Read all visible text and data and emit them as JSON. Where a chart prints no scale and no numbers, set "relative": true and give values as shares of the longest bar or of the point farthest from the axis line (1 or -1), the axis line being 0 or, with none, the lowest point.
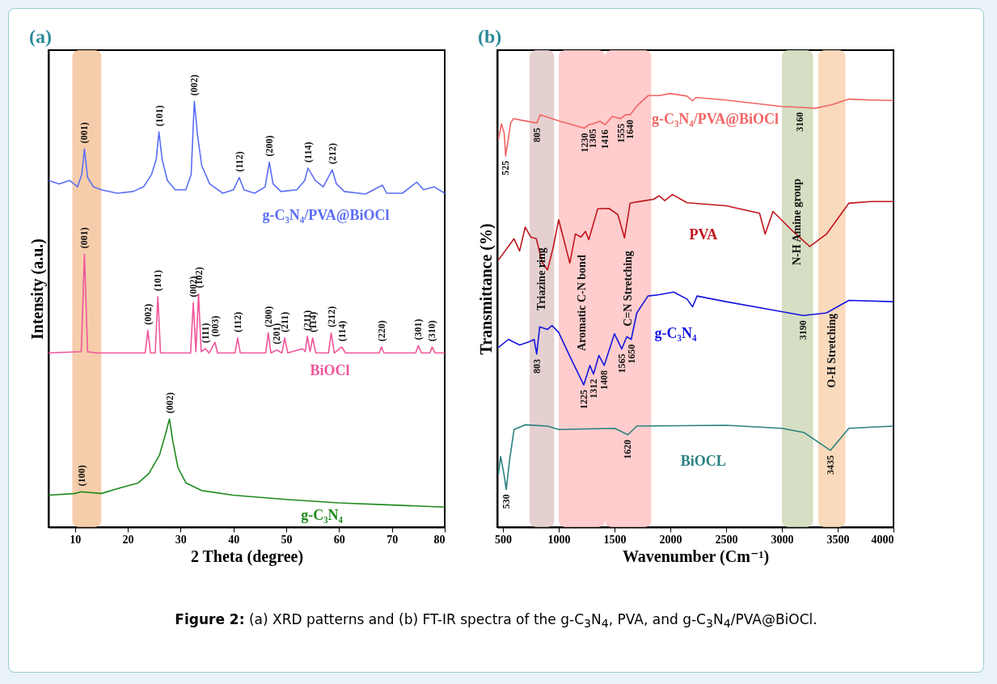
{
  "chart_data": [
    {
      "type": "line",
      "title": "(a)",
      "xlabel": "2 Theta (degree)",
      "ylabel": "Intensity (a.u.)",
      "relative": true,
      "xlim": [
        5,
        80
      ],
      "xticks": [
        10,
        20,
        30,
        40,
        50,
        60,
        70,
        80
      ],
      "series": [
        {
          "name": "g-C₃N₄/PVA@BiOCl",
          "color": "#5b6ef5",
          "x": [
            5,
            7,
            9,
            10.5,
            11.3,
            11.8,
            12.4,
            13.5,
            15,
            18,
            21,
            23,
            24.5,
            25.4,
            25.9,
            26.5,
            27.5,
            29,
            31,
            32,
            32.6,
            33.2,
            34,
            35.5,
            38,
            40,
            41.1,
            42,
            44,
            46,
            46.8,
            47.5,
            49,
            52,
            53.5,
            54.1,
            55.5,
            57,
            58.7,
            59.5,
            61,
            65,
            68.2,
            69,
            72,
            74.7,
            76,
            78,
            80
          ],
          "values": [
            0.814,
            0.806,
            0.814,
            0.799,
            0.828,
            0.888,
            0.821,
            0.799,
            0.792,
            0.784,
            0.788,
            0.799,
            0.828,
            0.864,
            0.928,
            0.864,
            0.814,
            0.792,
            0.792,
            0.828,
            1.0,
            0.921,
            0.849,
            0.806,
            0.784,
            0.792,
            0.821,
            0.792,
            0.784,
            0.799,
            0.857,
            0.806,
            0.788,
            0.792,
            0.814,
            0.843,
            0.814,
            0.799,
            0.839,
            0.806,
            0.788,
            0.782,
            0.803,
            0.784,
            0.784,
            0.81,
            0.792,
            0.799,
            0.784
          ]
        },
        {
          "name": "BiOCl",
          "color": "#f0559a",
          "x": [
            5,
            11.2,
            11.8,
            12.4,
            14,
            23.3,
            23.8,
            24.3,
            25.2,
            25.7,
            26.2,
            31.9,
            32.4,
            32.9,
            33.4,
            33.9,
            34.7,
            35.4,
            36.5,
            37,
            40.3,
            40.8,
            41.3,
            46.1,
            46.6,
            47.1,
            48.2,
            49.2,
            49.7,
            50.3,
            53.1,
            53.6,
            54.0,
            54.5,
            55.0,
            55.6,
            58,
            58.5,
            59.1,
            60.5,
            61.2,
            67.6,
            68.0,
            68.5,
            74.5,
            75.0,
            75.6,
            77.2,
            77.6,
            78.2,
            80
          ],
          "values": [
            0.409,
            0.412,
            0.641,
            0.412,
            0.409,
            0.409,
            0.462,
            0.409,
            0.409,
            0.541,
            0.409,
            0.409,
            0.527,
            0.412,
            0.548,
            0.412,
            0.419,
            0.409,
            0.434,
            0.409,
            0.409,
            0.444,
            0.409,
            0.409,
            0.456,
            0.409,
            0.416,
            0.409,
            0.444,
            0.409,
            0.419,
            0.412,
            0.448,
            0.412,
            0.444,
            0.409,
            0.409,
            0.456,
            0.409,
            0.423,
            0.409,
            0.409,
            0.423,
            0.409,
            0.409,
            0.426,
            0.409,
            0.409,
            0.423,
            0.409,
            0.409
          ]
        },
        {
          "name": "g-C₃N₄",
          "color": "#1e8a1e",
          "x": [
            5,
            10,
            11.2,
            15,
            18,
            22,
            24,
            26,
            27,
            27.9,
            28.5,
            29.5,
            31,
            34,
            40,
            50,
            60,
            70,
            80
          ],
          "values": [
            0.075,
            0.079,
            0.083,
            0.079,
            0.09,
            0.104,
            0.126,
            0.169,
            0.212,
            0.254,
            0.204,
            0.14,
            0.104,
            0.086,
            0.075,
            0.065,
            0.057,
            0.052,
            0.047
          ]
        }
      ],
      "bands": [
        {
          "axis": "x",
          "from": 9.5,
          "to": 15,
          "color": "#f5c49c"
        }
      ],
      "annotations": [
        {
          "text": "(001)",
          "x": 11.8,
          "y": 0.888
        },
        {
          "text": "(101)",
          "x": 25.9,
          "y": 0.928
        },
        {
          "text": "(002)",
          "x": 32.6,
          "y": 1.0
        },
        {
          "text": "(112)",
          "x": 41.1,
          "y": 0.821
        },
        {
          "text": "(200)",
          "x": 46.8,
          "y": 0.857
        },
        {
          "text": "(114)",
          "x": 54.1,
          "y": 0.843
        },
        {
          "text": "(212)",
          "x": 58.7,
          "y": 0.839
        },
        {
          "text": "(001)",
          "x": 11.8,
          "y": 0.641
        },
        {
          "text": "(002)",
          "x": 23.8,
          "y": 0.462
        },
        {
          "text": "(101)",
          "x": 25.7,
          "y": 0.541
        },
        {
          "text": "(002)",
          "x": 32.4,
          "y": 0.527
        },
        {
          "text": "(102)",
          "x": 33.4,
          "y": 0.548
        },
        {
          "text": "(111)",
          "x": 34.7,
          "y": 0.419
        },
        {
          "text": "(003)",
          "x": 36.5,
          "y": 0.434
        },
        {
          "text": "(112)",
          "x": 40.8,
          "y": 0.444
        },
        {
          "text": "(200)",
          "x": 46.6,
          "y": 0.456
        },
        {
          "text": "(201)",
          "x": 48.2,
          "y": 0.416
        },
        {
          "text": "(211)",
          "x": 49.7,
          "y": 0.444
        },
        {
          "text": "(211)",
          "x": 54.0,
          "y": 0.448
        },
        {
          "text": "(114)",
          "x": 55.0,
          "y": 0.444
        },
        {
          "text": "(212)",
          "x": 58.5,
          "y": 0.456
        },
        {
          "text": "(114)",
          "x": 60.5,
          "y": 0.423
        },
        {
          "text": "(220)",
          "x": 68.0,
          "y": 0.423
        },
        {
          "text": "(301)",
          "x": 75.0,
          "y": 0.426
        },
        {
          "text": "(310)",
          "x": 77.6,
          "y": 0.423
        },
        {
          "text": "(100)",
          "x": 11.2,
          "y": 0.083
        },
        {
          "text": "(002)",
          "x": 27.9,
          "y": 0.254
        },
        "Figure 2: (a) XRD patterns and (b) FT-IR spectra of the g-C$_{3}$N$_{4}$, PVA, and g-C$_{3}$N$_{4}$/PVA@BiOCl."
      ]
    },
    {
      "type": "line",
      "title": "(b)",
      "xlabel": "Wavenumber (Cm⁻¹)",
      "ylabel": "Transmittance (%)",
      "relative": true,
      "xlim": [
        450,
        4000
      ],
      "xticks": [
        500,
        1000,
        1500,
        2000,
        2500,
        3000,
        3500,
        4000
      ],
      "series": [
        {
          "name": "g-C₃N₄/PVA@BiOCl",
          "color": "#f26464",
          "x": [
            460,
            488,
            512,
            525,
            570,
            595,
            655,
            805,
            835,
            1012,
            1230,
            1270,
            1305,
            1370,
            1416,
            1480,
            1555,
            1600,
            1640,
            1700,
            1800,
            1900,
            2000,
            2150,
            2200,
            2230,
            2500,
            3000,
            3160,
            3300,
            3450,
            3600,
            3800,
            4000
          ],
          "values": [
            0.894,
            0.93,
            0.908,
            0.856,
            0.932,
            0.942,
            0.939,
            0.932,
            0.951,
            0.936,
            0.92,
            0.928,
            0.93,
            0.936,
            0.928,
            0.947,
            0.942,
            0.951,
            0.951,
            0.971,
            0.995,
            0.995,
            1.0,
            0.994,
            0.983,
            0.991,
            0.985,
            0.97,
            0.968,
            0.966,
            0.974,
            0.987,
            0.985,
            0.984
          ]
        },
        {
          "name": "PVA",
          "color": "#c0141c",
          "x": [
            460,
            600,
            650,
            700,
            750,
            800,
            850,
            900,
            950,
            1000,
            1100,
            1150,
            1200,
            1240,
            1270,
            1350,
            1450,
            1530,
            1590,
            1640,
            1750,
            1850,
            1900,
            1950,
            2020,
            2150,
            2500,
            2800,
            2850,
            2920,
            3100,
            3250,
            3400,
            3600,
            3800,
            4000
          ],
          "values": [
            0.616,
            0.665,
            0.637,
            0.692,
            0.669,
            0.665,
            0.612,
            0.593,
            0.644,
            0.709,
            0.609,
            0.676,
            0.669,
            0.682,
            0.663,
            0.734,
            0.735,
            0.721,
            0.667,
            0.747,
            0.752,
            0.756,
            0.764,
            0.753,
            0.767,
            0.748,
            0.741,
            0.724,
            0.676,
            0.728,
            0.682,
            0.647,
            0.676,
            0.747,
            0.751,
            0.751
          ]
        },
        {
          "name": "g-C₃N₄",
          "color": "#1515e0",
          "x": [
            460,
            550,
            650,
            740,
            780,
            803,
            830,
            900,
            940,
            1000,
            1100,
            1225,
            1280,
            1312,
            1360,
            1408,
            1500,
            1565,
            1610,
            1650,
            1700,
            1800,
            1900,
            2030,
            2150,
            2200,
            2240,
            2500,
            3000,
            3190,
            3400,
            3600,
            4000
          ],
          "values": [
            0.414,
            0.433,
            0.42,
            0.428,
            0.433,
            0.399,
            0.462,
            0.456,
            0.465,
            0.449,
            0.394,
            0.328,
            0.373,
            0.353,
            0.396,
            0.373,
            0.446,
            0.411,
            0.439,
            0.433,
            0.494,
            0.533,
            0.536,
            0.542,
            0.526,
            0.508,
            0.533,
            0.52,
            0.497,
            0.488,
            0.494,
            0.523,
            0.52
          ]
        },
        {
          "name": "BiOCL",
          "color": "#2a8080",
          "x": [
            460,
            480,
            510,
            530,
            560,
            600,
            700,
            900,
            1000,
            1500,
            1620,
            1700,
            2500,
            3000,
            3200,
            3435,
            3600,
            4000
          ],
          "values": [
            0.122,
            0.163,
            0.122,
            0.087,
            0.154,
            0.225,
            0.236,
            0.233,
            0.225,
            0.228,
            0.213,
            0.233,
            0.235,
            0.228,
            0.218,
            0.177,
            0.228,
            0.233
          ]
        }
      ],
      "bands": [
        {
          "axis": "x",
          "from": 740,
          "to": 960,
          "color": "#e0c8c8",
          "label": "Triazine ring"
        },
        {
          "axis": "x",
          "from": 1000,
          "to": 1415,
          "color": "#ffc4c4",
          "label": "Aromatic C-N bond"
        },
        {
          "axis": "x",
          "from": 1415,
          "to": 1830,
          "color": "#ffc4c4",
          "label": "C=N Stretching"
        },
        {
          "axis": "x",
          "from": 3000,
          "to": 3280,
          "color": "#cfd8b8",
          "label": "N-H Amine group"
        },
        {
          "axis": "x",
          "from": 3325,
          "to": 3570,
          "color": "#f8d4b0",
          "label": "O-H Stretching"
        }
      ],
      "annotations": [
        {
          "text": "525",
          "x": 525,
          "y": 0.856
        },
        {
          "text": "805",
          "x": 805,
          "y": 0.932
        },
        {
          "text": "1230",
          "x": 1230,
          "y": 0.92
        },
        {
          "text": "1305",
          "x": 1305,
          "y": 0.93
        },
        {
          "text": "1416",
          "x": 1416,
          "y": 0.928
        },
        {
          "text": "1555",
          "x": 1555,
          "y": 0.942
        },
        {
          "text": "1640",
          "x": 1640,
          "y": 0.951
        },
        {
          "text": "3160",
          "x": 3160,
          "y": 0.968
        },
        {
          "text": "803",
          "x": 803,
          "y": 0.399
        },
        {
          "text": "1225",
          "x": 1225,
          "y": 0.328
        },
        {
          "text": "1312",
          "x": 1312,
          "y": 0.353
        },
        {
          "text": "1408",
          "x": 1408,
          "y": 0.373
        },
        {
          "text": "1565",
          "x": 1565,
          "y": 0.411
        },
        {
          "text": "1650",
          "x": 1650,
          "y": 0.433
        },
        {
          "text": "3190",
          "x": 3190,
          "y": 0.488
        },
        {
          "text": "1620",
          "x": 1620,
          "y": 0.213
        },
        {
          "text": "3435",
          "x": 3435,
          "y": 0.177
        },
        {
          "text": "530",
          "x": 530,
          "y": 0.087
        }
      ]
    }
  ]
}
